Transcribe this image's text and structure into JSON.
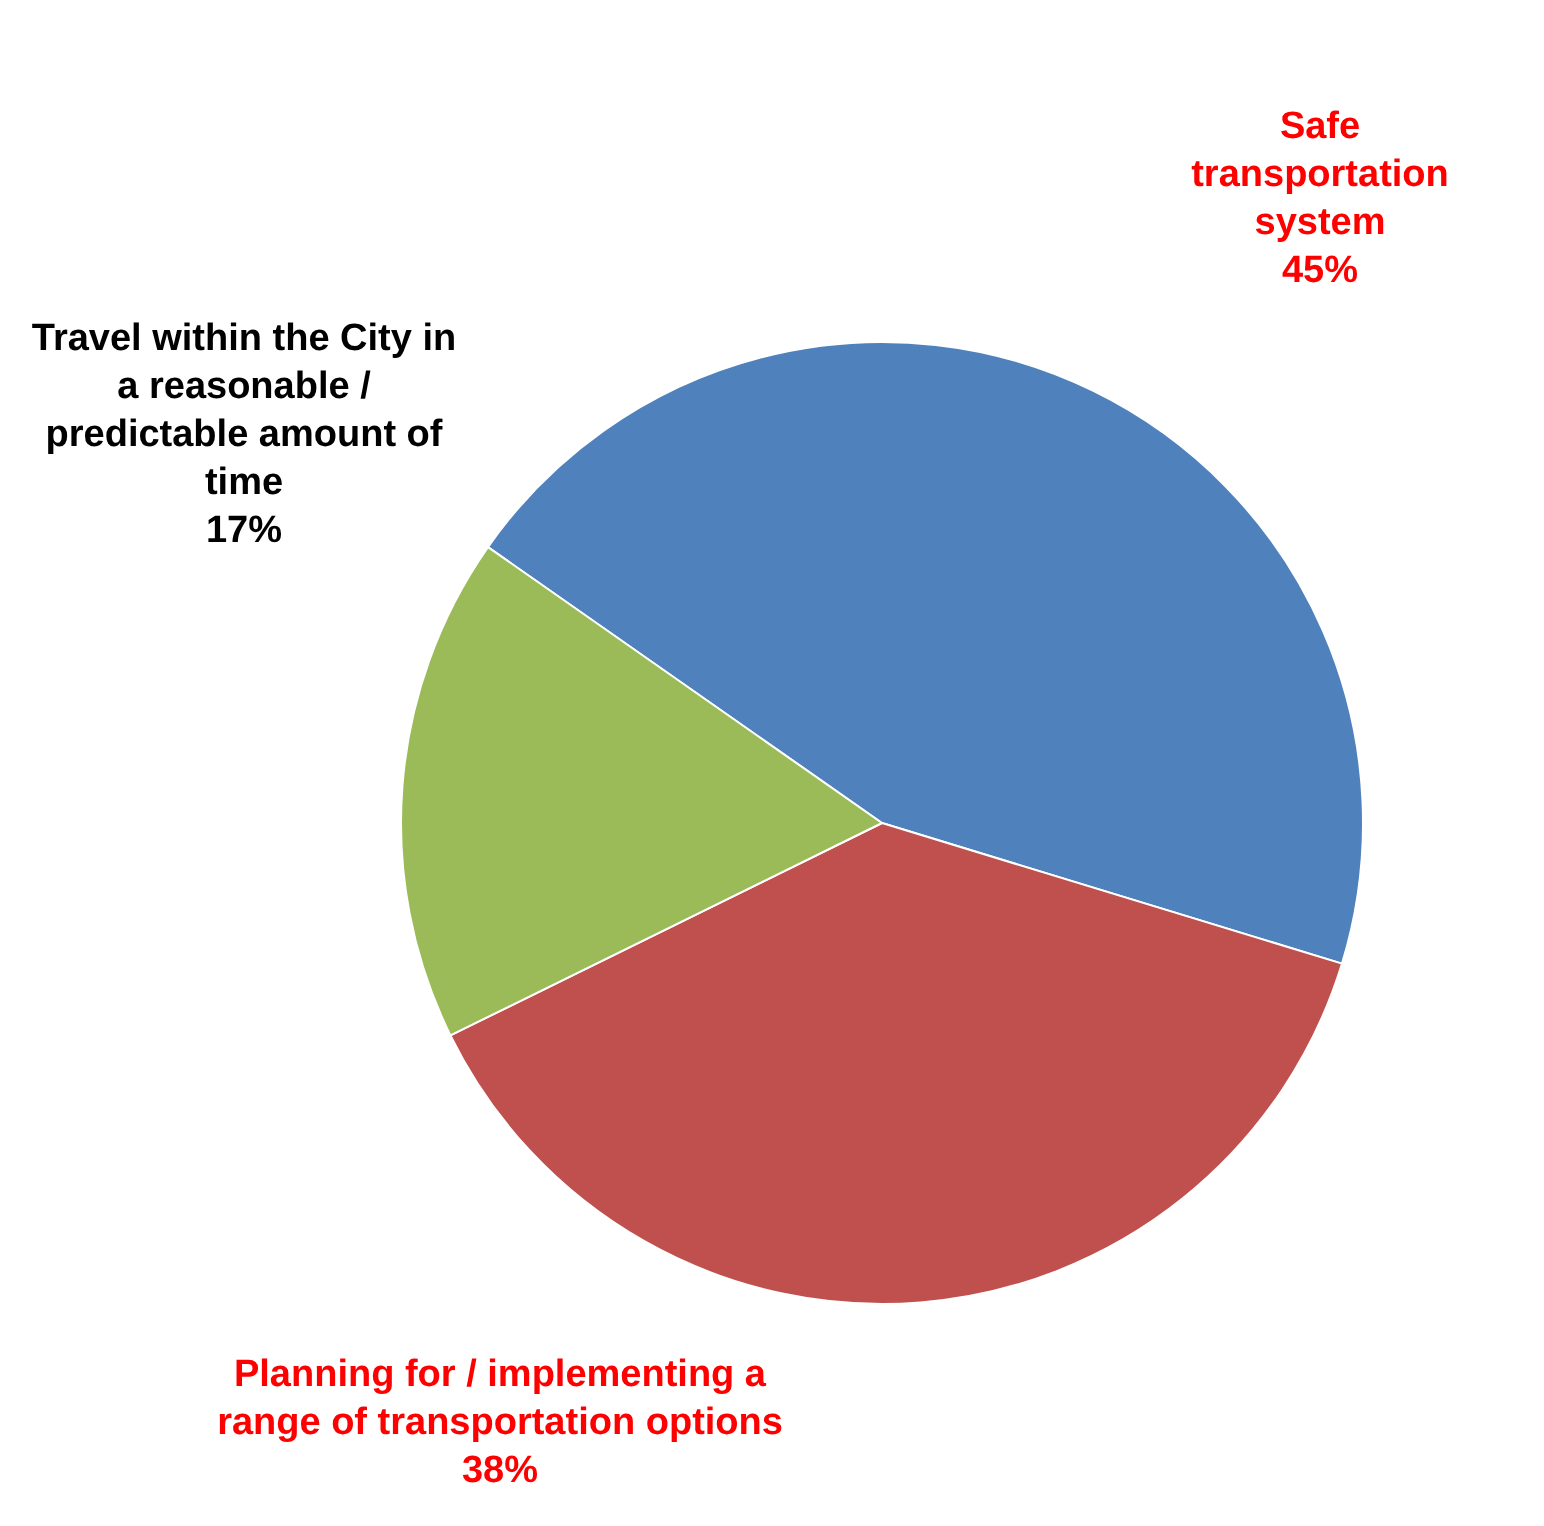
{
  "chart_data": {
    "type": "pie",
    "categories": [
      "Safe transportation system",
      "Planning for / implementing a range of transportation options",
      "Travel within the City in a reasonable / predictable amount of time"
    ],
    "values": [
      45,
      38,
      17
    ],
    "colors": [
      "#4f81bd",
      "#c0504d",
      "#9bbb59"
    ],
    "value_labels": [
      "45%",
      "38%",
      "17%"
    ],
    "legend": false
  }
}
